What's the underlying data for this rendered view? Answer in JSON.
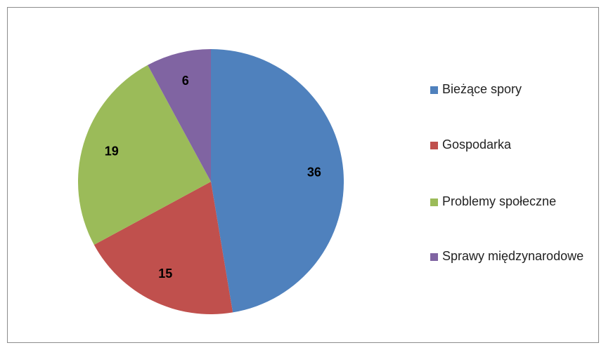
{
  "chart_data": {
    "type": "pie",
    "categories": [
      "Bieżące spory",
      "Gospodarka",
      "Problemy społeczne",
      "Sprawy międzynarodowe"
    ],
    "values": [
      36,
      15,
      19,
      6
    ],
    "colors": [
      "#4f81bd",
      "#c0504d",
      "#9bbb59",
      "#8064a2"
    ],
    "legend": "right"
  }
}
